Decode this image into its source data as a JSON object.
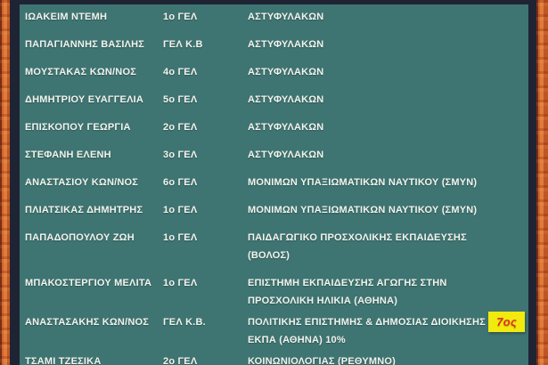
{
  "board": {
    "rows": [
      {
        "name": "ΙΩΑΚΕΙΜ ΝΤΕΜΗ",
        "school": "1ο ΓΕΛ",
        "department": "ΑΣΤΥΦΥΛΑΚΩΝ"
      },
      {
        "name": "ΠΑΠΑΓΙΑΝΝΗΣ ΒΑΣΙΛΗΣ",
        "school": "ΓΕΛ Κ.Β",
        "department": "ΑΣΤΥΦΥΛΑΚΩΝ"
      },
      {
        "name": "ΜΟΥΣΤΑΚΑΣ ΚΩΝ/ΝΟΣ",
        "school": "4ο ΓΕΛ",
        "department": "ΑΣΤΥΦΥΛΑΚΩΝ"
      },
      {
        "name": "ΔΗΜΗΤΡΙΟΥ ΕΥΑΓΓΕΛΙΑ",
        "school": "5ο ΓΕΛ",
        "department": "ΑΣΤΥΦΥΛΑΚΩΝ"
      },
      {
        "name": "ΕΠΙΣΚΟΠΟΥ ΓΕΩΡΓΙΑ",
        "school": "2ο ΓΕΛ",
        "department": "ΑΣΤΥΦΥΛΑΚΩΝ"
      },
      {
        "name": "ΣΤΕΦΑΝΗ ΕΛΕΝΗ",
        "school": "3ο ΓΕΛ",
        "department": "ΑΣΤΥΦΥΛΑΚΩΝ"
      },
      {
        "name": "ΑΝΑΣΤΑΣΙΟΥ ΚΩΝ/ΝΟΣ",
        "school": "6ο ΓΕΛ",
        "department": "ΜΟΝΙΜΩΝ ΥΠΑΞΙΩΜΑΤΙΚΩΝ ΝΑΥΤΙΚΟΥ (ΣΜΥΝ)"
      },
      {
        "name": "ΠΛΙΑΤΣΙΚΑΣ ΔΗΜΗΤΡΗΣ",
        "school": "1ο ΓΕΛ",
        "department": "ΜΟΝΙΜΩΝ ΥΠΑΞΙΩΜΑΤΙΚΩΝ ΝΑΥΤΙΚΟΥ (ΣΜΥΝ)"
      },
      {
        "name": "ΠΑΠΑΔΟΠΟΥΛΟΥ ΖΩΗ",
        "school": "1ο ΓΕΛ",
        "department": "ΠΑΙΔΑΓΩΓΙΚΟ ΠΡΟΣΧΟΛΙΚΗΣ ΕΚΠΑΙΔΕΥΣΗΣ (ΒΟΛΟΣ)"
      },
      {
        "name": "ΜΠΑΚΟΣΤΕΡΓΙΟΥ ΜΕΛΙΤΑ",
        "school": "1ο ΓΕΛ",
        "department": "ΕΠΙΣΤΗΜΗ ΕΚΠΑΙΔΕΥΣΗΣ ΑΓΩΓΗΣ ΣΤΗΝ ΠΡΟΣΧΟΛΙΚΗ ΗΛΙΚΙΑ (ΑΘΗΝΑ)"
      },
      {
        "name": "ΑΝΑΣΤΑΣΑΚΗΣ ΚΩΝ/ΝΟΣ",
        "school": "ΓΕΛ Κ.Β.",
        "department": "ΠΟΛΙΤΙΚΗΣ ΕΠΙΣΤΗΜΗΣ & ΔΗΜΟΣΙΑΣ ΔΙΟΙΚΗΣΗΣ ΕΚΠΑ (ΑΘΗΝΑ)  10%",
        "badge": "7ος"
      },
      {
        "name": "ΤΣΑΜΙ ΤΖΕΣΙΚΑ",
        "school": "2ο ΓΕΛ",
        "department": "ΚΟΙΝΩΝΙΟΛΟΓΙΑΣ (ΡΕΘΥΜΝΟ)"
      }
    ],
    "colors": {
      "board_green": "#3e7471",
      "frame_wood_orange": "#d4692f",
      "inner_band_dark": "#1e2434",
      "text_white": "#f2f3ee",
      "badge_bg_yellow": "#f2e90e",
      "badge_text_red": "#e03222"
    }
  }
}
